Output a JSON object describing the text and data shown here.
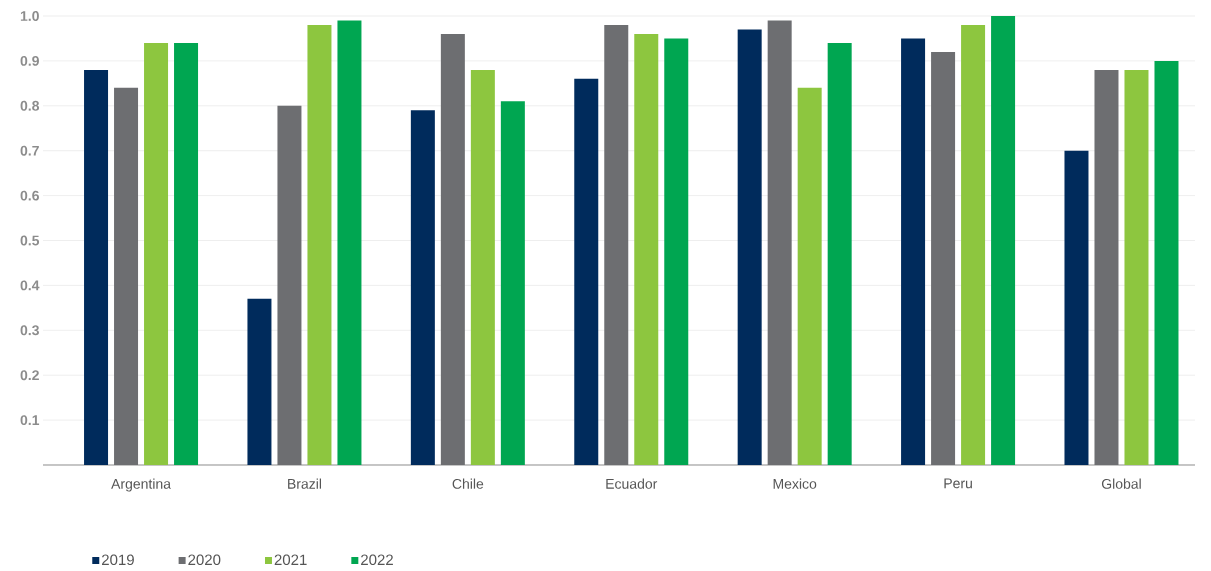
{
  "chart_data": {
    "type": "bar",
    "categories": [
      "Argentina",
      "Brazil",
      "Chile",
      "Ecuador",
      "Mexico",
      "Peru",
      "Global"
    ],
    "series": [
      {
        "name": "2019",
        "color": "#002b5c",
        "values": [
          0.88,
          0.37,
          0.79,
          0.86,
          0.97,
          0.95,
          0.7
        ]
      },
      {
        "name": "2020",
        "color": "#6d6e71",
        "values": [
          0.84,
          0.8,
          0.96,
          0.98,
          0.99,
          0.92,
          0.88
        ]
      },
      {
        "name": "2021",
        "color": "#8dc63f",
        "values": [
          0.94,
          0.98,
          0.88,
          0.96,
          0.84,
          0.98,
          0.88
        ]
      },
      {
        "name": "2022",
        "color": "#00a651",
        "values": [
          0.94,
          0.99,
          0.81,
          0.95,
          0.94,
          1.0,
          0.9
        ]
      }
    ],
    "ylim": [
      0,
      1.0
    ],
    "yticks": [
      0.1,
      0.2,
      0.3,
      0.4,
      0.5,
      0.6,
      0.7,
      0.8,
      0.9,
      {
        "value": 1.0,
        "label": "1.0"
      }
    ],
    "grid": "y",
    "legend": "bottom left"
  }
}
